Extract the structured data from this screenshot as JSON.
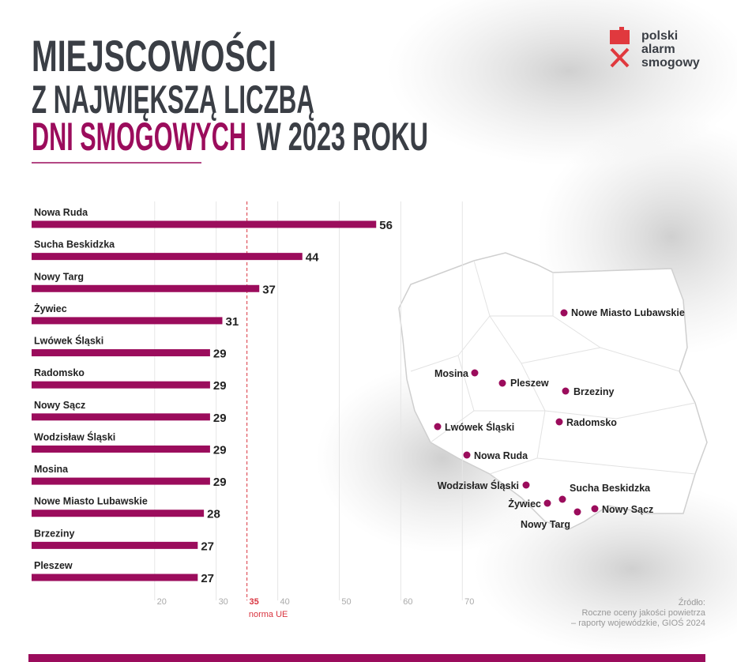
{
  "chart_data": {
    "type": "bar",
    "orientation": "horizontal",
    "title_lines": [
      "MIEJSCOWOŚCI",
      "Z NAJWIĘKSZĄ LICZBĄ"
    ],
    "title_highlight": "DNI SMOGOWYCH",
    "title_rest": "W 2023 ROKU",
    "categories": [
      "Nowa Ruda",
      "Sucha Beskidzka",
      "Nowy Targ",
      "Żywiec",
      "Lwówek Śląski",
      "Radomsko",
      "Nowy Sącz",
      "Wodzisław Śląski",
      "Mosina",
      "Nowe Miasto Lubawskie",
      "Brzeziny",
      "Pleszew"
    ],
    "values": [
      56,
      44,
      37,
      31,
      29,
      29,
      29,
      29,
      29,
      28,
      27,
      27
    ],
    "color": "#9b0c5c",
    "xlim": [
      0,
      72
    ],
    "xticks": [
      20,
      30,
      40,
      50,
      60,
      70
    ],
    "grid": true,
    "threshold": {
      "value": 35,
      "note": "norma UE",
      "color": "#d9343f"
    }
  },
  "map_cities": [
    "Nowe Miasto Lubawskie",
    "Mosina",
    "Pleszew",
    "Brzeziny",
    "Radomsko",
    "Lwówek Śląski",
    "Nowa Ruda",
    "Wodzisław Śląski",
    "Sucha Beskidzka",
    "Żywiec",
    "Nowy Sącz",
    "Nowy Targ"
  ],
  "logo": [
    "polski",
    "alarm",
    "smogowy"
  ],
  "source": [
    "Źródło:",
    "Roczne oceny jakości powietrza",
    "– raporty wojewódzkie, GIOŚ 2024"
  ]
}
